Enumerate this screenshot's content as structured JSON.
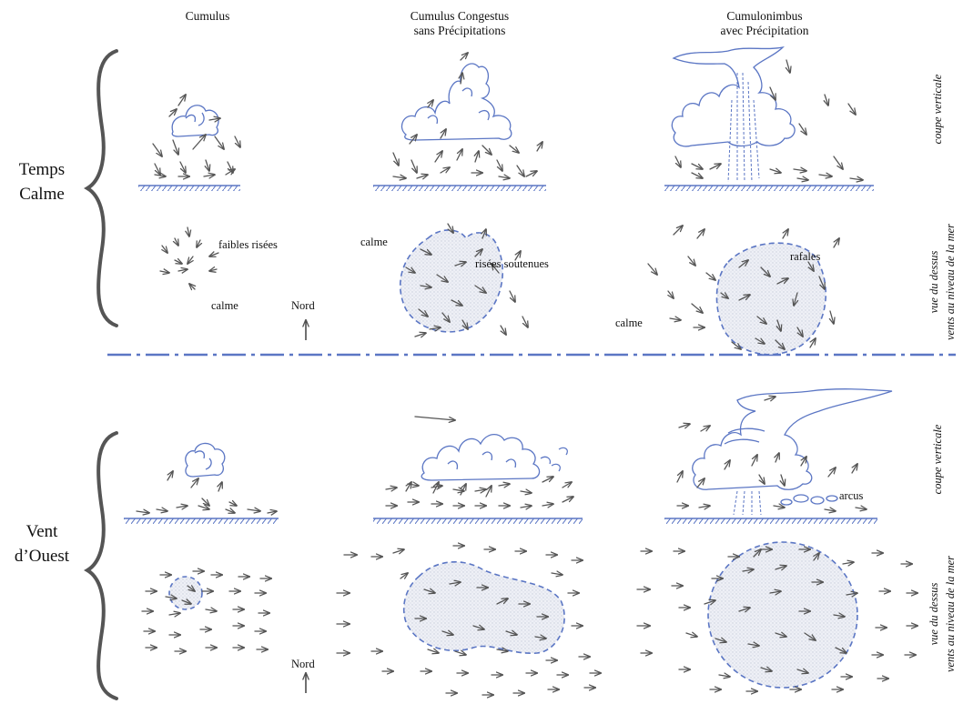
{
  "columns": [
    {
      "line1": "Cumulus",
      "line2": ""
    },
    {
      "line1": "Cumulus Congestus",
      "line2": "sans Précipitations"
    },
    {
      "line1": "Cumulonimbus",
      "line2": "avec Précipitation"
    }
  ],
  "rows": [
    {
      "line1": "Temps",
      "line2": "Calme"
    },
    {
      "line1": "Vent",
      "line2": "d’Ouest"
    }
  ],
  "side_labels": {
    "vertical": "coupe verticale",
    "top_view_1": "vue du dessus",
    "top_view_2": "vents au niveau de la mer"
  },
  "annotations": {
    "faibles": "faibles risées",
    "calme": "calme",
    "nord": "Nord",
    "soutenues": "risées soutenues",
    "rafales": "rafales",
    "arcus": "arcus"
  },
  "colors": {
    "cloud": "#5b76c4",
    "arrow": "#555555",
    "text": "#111111",
    "fill": "#e6e9f1"
  }
}
